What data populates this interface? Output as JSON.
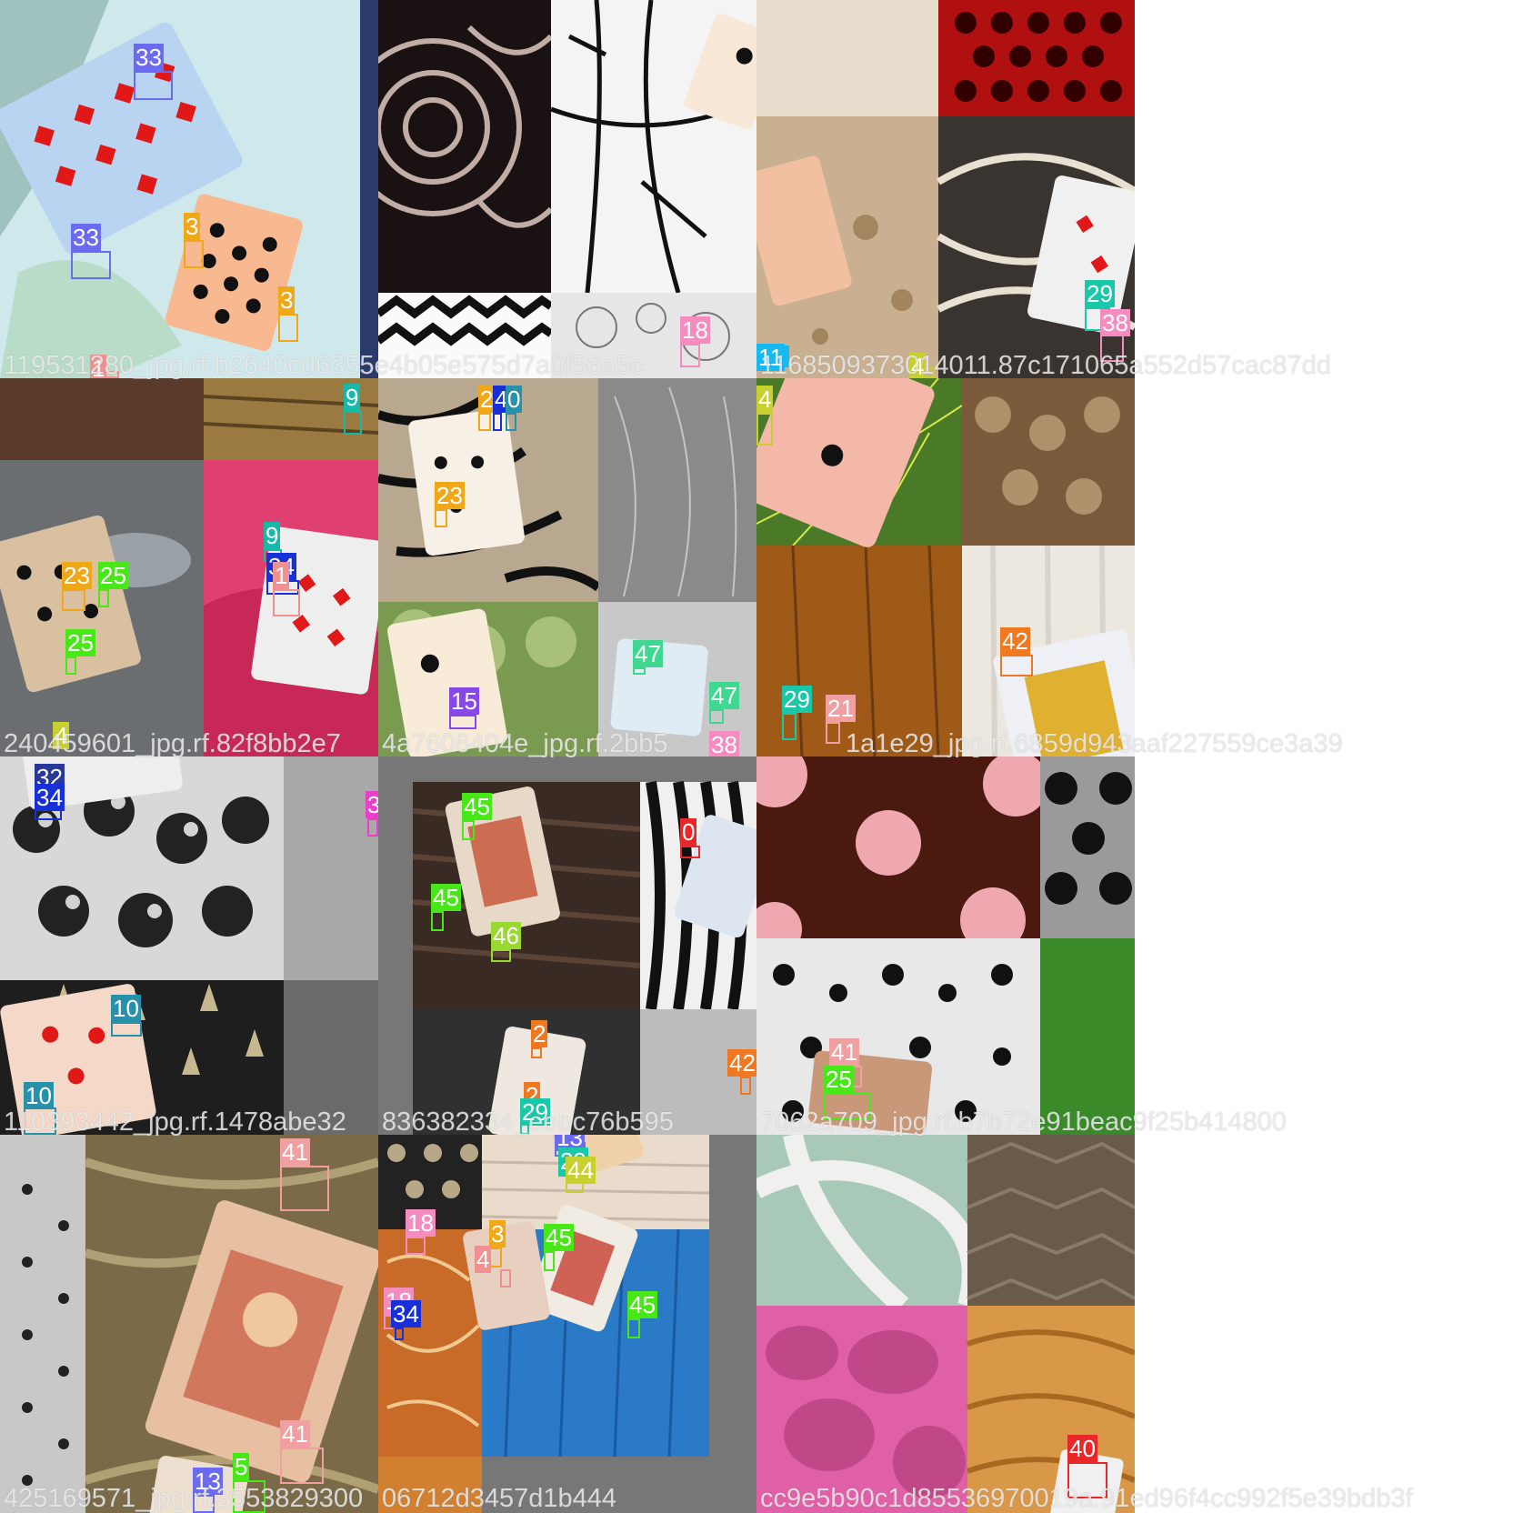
{
  "tiles": [
    {
      "id": "t00",
      "filename": "119531280_jpg.rf.b2640cd6355e4b05e575d7a0f56a5c",
      "detections": [
        {
          "label": "33",
          "color": "#6b6bf0"
        },
        {
          "label": "33",
          "color": "#6b6bf0"
        },
        {
          "label": "3",
          "color": "#f0a818"
        },
        {
          "label": "3",
          "color": "#f0a818"
        },
        {
          "label": "1",
          "color": "#f09090"
        }
      ]
    },
    {
      "id": "t01",
      "filename": "",
      "detections": [
        {
          "label": "18",
          "color": "#f58cc0"
        }
      ]
    },
    {
      "id": "t02",
      "filename": "1168509373014011.87c171065a552d57cac87dd",
      "detections": [
        {
          "label": "29",
          "color": "#18c8a8"
        },
        {
          "label": "38",
          "color": "#f58cc0"
        },
        {
          "label": "11",
          "color": "#18b8f0"
        },
        {
          "label": "4",
          "color": "#c8d030"
        }
      ]
    },
    {
      "id": "t10",
      "filename": "240459601_jpg.rf.82f8bb2e7",
      "detections": [
        {
          "label": "9",
          "color": "#18b8a8"
        },
        {
          "label": "9",
          "color": "#18b8a8"
        },
        {
          "label": "34",
          "color": "#1830d8"
        },
        {
          "label": "1",
          "color": "#f09090"
        },
        {
          "label": "23",
          "color": "#f0a818"
        },
        {
          "label": "25",
          "color": "#48e818"
        },
        {
          "label": "25",
          "color": "#48e818"
        },
        {
          "label": "4",
          "color": "#c8d030"
        }
      ]
    },
    {
      "id": "t11",
      "filename": "4a7606404e_jpg.rf.2bb5",
      "detections": [
        {
          "label": "23",
          "color": "#f0a818"
        },
        {
          "label": "4",
          "color": "#1830d8"
        },
        {
          "label": "0",
          "color": "#2890a8"
        },
        {
          "label": "23",
          "color": "#f0a818"
        },
        {
          "label": "15",
          "color": "#8848e8"
        },
        {
          "label": "47",
          "color": "#40d890"
        },
        {
          "label": "47",
          "color": "#40d890"
        },
        {
          "label": "38",
          "color": "#f58cc0"
        }
      ]
    },
    {
      "id": "t12",
      "filename": "1a1e29_jpg.rf.6859d943aaf227559ce3a39",
      "detections": [
        {
          "label": "4",
          "color": "#c8d030"
        },
        {
          "label": "29",
          "color": "#18c8a8"
        },
        {
          "label": "21",
          "color": "#f0a0a0"
        },
        {
          "label": "42",
          "color": "#f07820"
        }
      ]
    },
    {
      "id": "t20",
      "filename": "110393442_jpg.rf.1478abe32",
      "detections": [
        {
          "label": "32",
          "color": "#283898"
        },
        {
          "label": "34",
          "color": "#1830d8"
        },
        {
          "label": "39",
          "color": "#e840c8"
        },
        {
          "label": "10",
          "color": "#2890a8"
        },
        {
          "label": "10",
          "color": "#2890a8"
        }
      ]
    },
    {
      "id": "t21",
      "filename": "836382334_eebc76b595",
      "detections": [
        {
          "label": "45",
          "color": "#48e818"
        },
        {
          "label": "0",
          "color": "#e82828"
        },
        {
          "label": "45",
          "color": "#48e818"
        },
        {
          "label": "46",
          "color": "#98d830"
        },
        {
          "label": "2",
          "color": "#f07820"
        },
        {
          "label": "2",
          "color": "#f07820"
        },
        {
          "label": "29",
          "color": "#18c8a8"
        },
        {
          "label": "42",
          "color": "#f07820"
        }
      ]
    },
    {
      "id": "t22",
      "filename": "7062a709_jpg.rf.b7b72e91beac9f25b414800",
      "detections": [
        {
          "label": "41",
          "color": "#f0a0a0"
        },
        {
          "label": "25",
          "color": "#48e818"
        }
      ]
    },
    {
      "id": "t30",
      "filename": "425169571_jpg.rf.3553829300",
      "detections": [
        {
          "label": "41",
          "color": "#f0a0a0"
        },
        {
          "label": "41",
          "color": "#f0a0a0"
        },
        {
          "label": "13",
          "color": "#6b6bf0"
        },
        {
          "label": "5",
          "color": "#48e818"
        }
      ]
    },
    {
      "id": "t31",
      "filename": "06712d3457d1b444",
      "detections": [
        {
          "label": "13",
          "color": "#6b6bf0"
        },
        {
          "label": "29",
          "color": "#18c8a8"
        },
        {
          "label": "44",
          "color": "#c8d030"
        },
        {
          "label": "3",
          "color": "#f0a818"
        },
        {
          "label": "4",
          "color": "#f09090"
        },
        {
          "label": "45",
          "color": "#48e818"
        },
        {
          "label": "18",
          "color": "#f58cc0"
        },
        {
          "label": "45",
          "color": "#48e818"
        },
        {
          "label": "18",
          "color": "#f58cc0"
        },
        {
          "label": "34",
          "color": "#1830d8"
        }
      ]
    },
    {
      "id": "t32",
      "filename": "cc9e5b90c1d85536970019a.91ed96f4cc992f5e39bdb3f",
      "detections": [
        {
          "label": "40",
          "color": "#e82828"
        }
      ]
    }
  ]
}
